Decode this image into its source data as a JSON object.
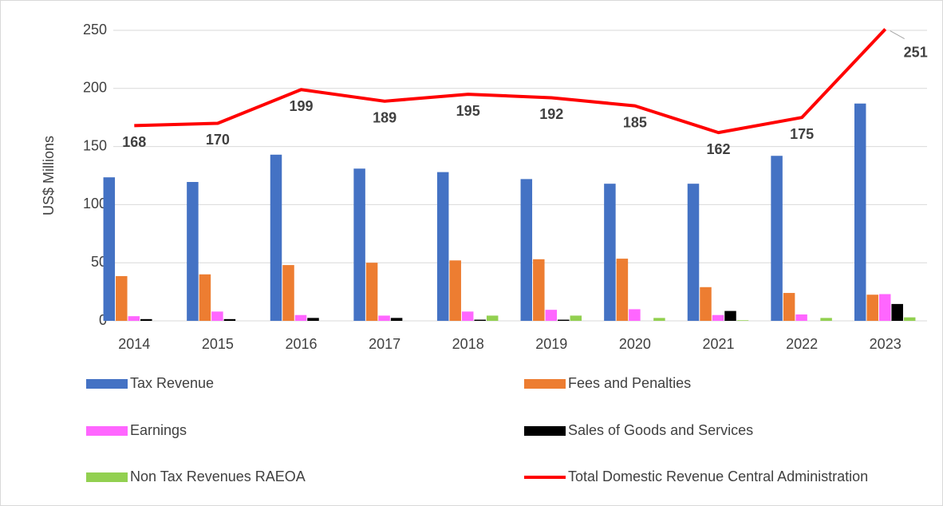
{
  "chart_data": {
    "type": "bar",
    "y_axis_label": "US$ Millions",
    "categories": [
      "2014",
      "2015",
      "2016",
      "2017",
      "2018",
      "2019",
      "2020",
      "2021",
      "2022",
      "2023"
    ],
    "series": [
      {
        "name": "Tax Revenue",
        "color": "#4472c4",
        "values": [
          123.5,
          119.5,
          143,
          131,
          128,
          122,
          118,
          118,
          142,
          187
        ]
      },
      {
        "name": "Fees and Penalties",
        "color": "#ed7d31",
        "values": [
          38.5,
          40,
          48,
          50,
          52,
          53,
          53.5,
          29,
          24,
          22.5
        ]
      },
      {
        "name": "Earnings",
        "color": "#ff66ff",
        "values": [
          4,
          8,
          5,
          4.5,
          8,
          9.5,
          10,
          5,
          5.5,
          23
        ]
      },
      {
        "name": "Sales of Goods and Services",
        "color": "#000000",
        "values": [
          1.5,
          1.5,
          2.5,
          2.5,
          1,
          1,
          0,
          8.5,
          0,
          14.5
        ]
      },
      {
        "name": "Non Tax Revenues RAEOA",
        "color": "#92d050",
        "values": [
          0,
          0,
          0,
          0,
          4.5,
          4.5,
          2.5,
          0.5,
          2.5,
          3
        ]
      },
      {
        "name": "Total Domestic Revenue Central Administration",
        "color": "#ff0000",
        "type": "line",
        "values": [
          168,
          170,
          199,
          189,
          195,
          192,
          185,
          162,
          175,
          251
        ]
      }
    ],
    "ylim": [
      0,
      250
    ],
    "yticks": [
      0,
      50,
      100,
      150,
      200,
      250
    ],
    "grid": true,
    "legend": "bottom"
  }
}
